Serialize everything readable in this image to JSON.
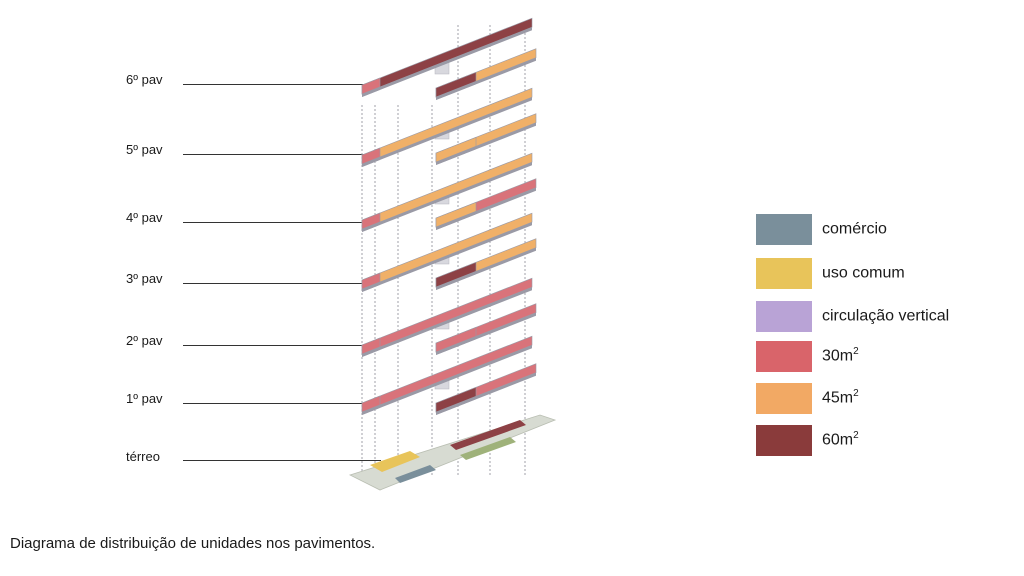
{
  "floors": [
    {
      "label": "6º pav"
    },
    {
      "label": "5º pav"
    },
    {
      "label": "4º pav"
    },
    {
      "label": "3º pav"
    },
    {
      "label": "2º pav"
    },
    {
      "label": "1º pav"
    },
    {
      "label": "térreo"
    }
  ],
  "legend": [
    {
      "label": "comércio",
      "sup": "",
      "color": "#7a8f9b"
    },
    {
      "label": "uso comum",
      "sup": "",
      "color": "#e8c45a"
    },
    {
      "label": "circulação vertical",
      "sup": "",
      "color": "#b9a3d6"
    },
    {
      "label": "30m",
      "sup": "2",
      "color": "#d9646a"
    },
    {
      "label": "45m",
      "sup": "2",
      "color": "#f2a964"
    },
    {
      "label": "60m",
      "sup": "2",
      "color": "#8a3b3b"
    }
  ],
  "colors": {
    "unit_30": "#d9737a",
    "unit_45": "#f0b068",
    "unit_60": "#8d4145",
    "slab_edge": "#9a9aa6",
    "core": "#d8d8de",
    "ground": "#c9d2c0"
  },
  "caption": "Diagrama de distribuição de unidades nos pavimentos."
}
